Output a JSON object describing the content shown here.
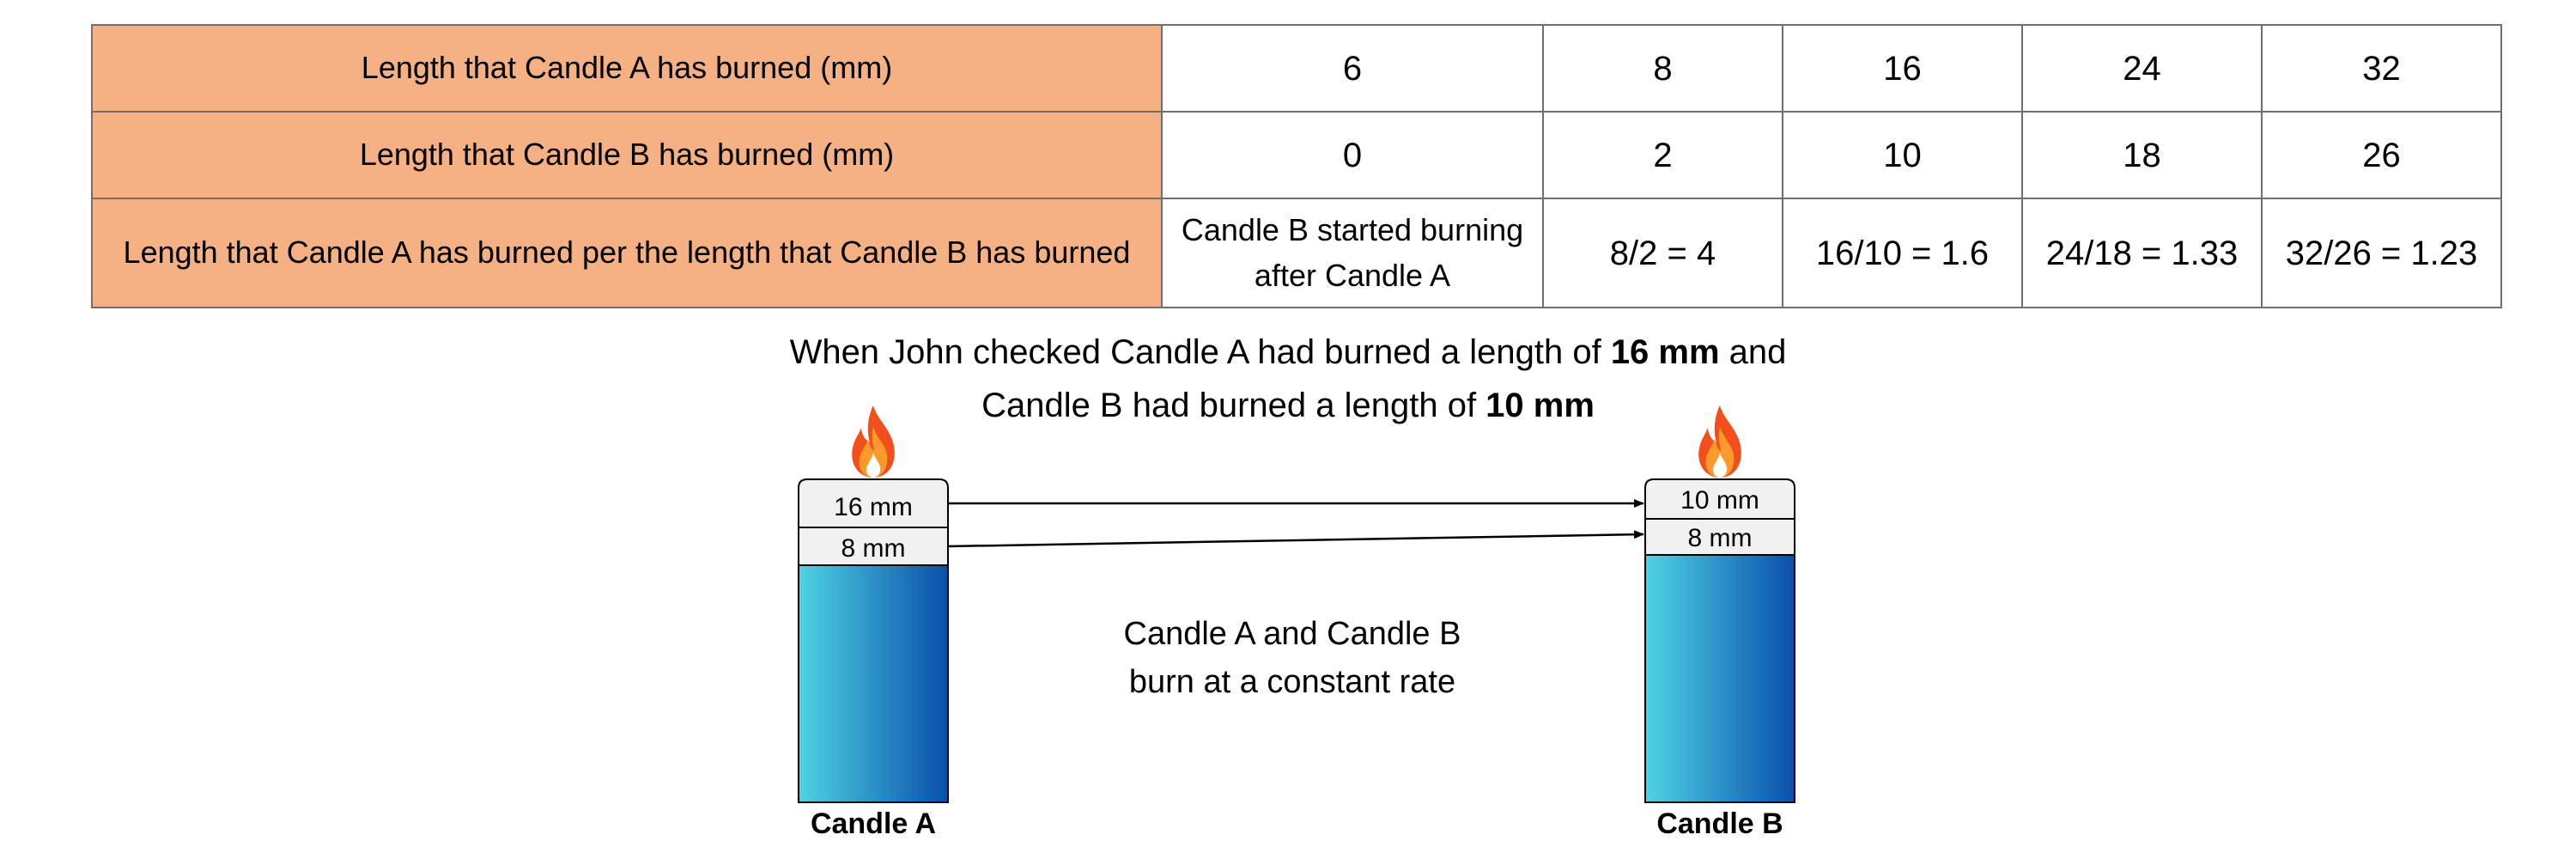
{
  "table": {
    "rows": [
      {
        "label": "Length that Candle A has burned (mm)",
        "cells": [
          "6",
          "8",
          "16",
          "24",
          "32"
        ]
      },
      {
        "label": "Length that Candle B has burned (mm)",
        "cells": [
          "0",
          "2",
          "10",
          "18",
          "26"
        ]
      },
      {
        "label": "Length that Candle A has burned per the length that Candle B has burned",
        "cells": [
          "Candle B started burning after Candle A",
          "8/2 = 4",
          "16/10 = 1.6",
          "24/18 = 1.33",
          "32/26 = 1.23"
        ]
      }
    ]
  },
  "caption": {
    "line1_pre": "When John checked Candle A had burned a length of ",
    "line1_bold": "16 mm",
    "line1_post": " and",
    "line2_pre": "Candle B had burned a length of ",
    "line2_bold": "10 mm"
  },
  "diagram": {
    "candle_a": {
      "name": "Candle A",
      "seg_top": "16 mm",
      "seg_mid": "8 mm"
    },
    "candle_b": {
      "name": "Candle B",
      "seg_top": "10 mm",
      "seg_mid": "8 mm"
    },
    "note_line1": "Candle A and Candle B",
    "note_line2": "burn at a constant rate",
    "colors": {
      "table_label_bg": "#f5b183",
      "candle_gradient_start": "#4fd3e3",
      "candle_gradient_end": "#0a4fab",
      "segment_fill": "#f2f1f2",
      "flame_outer": "#f24f1c",
      "flame_mid": "#fb9a2a",
      "flame_inner": "#ffffff"
    }
  }
}
